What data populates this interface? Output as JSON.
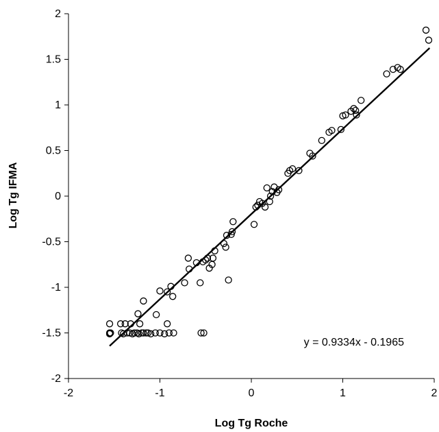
{
  "chart_data": {
    "type": "scatter",
    "title": "",
    "xlabel": "Log Tg Roche",
    "ylabel": "Log Tg IFMA",
    "xlim": [
      -2,
      2
    ],
    "ylim": [
      -2,
      2
    ],
    "xticks": [
      "-2",
      "-1",
      "0",
      "1",
      "2"
    ],
    "yticks": [
      "-2",
      "-1.5",
      "-1",
      "-0.5",
      "0",
      "0.5",
      "1",
      "1.5",
      "2"
    ],
    "grid": false,
    "legend": "none",
    "marker": "open-circle",
    "colors": {
      "points": "#000000",
      "line": "#000000",
      "axes": "#000000"
    },
    "trendline": {
      "slope": 0.9334,
      "intercept": -0.1965,
      "x_range": [
        -1.55,
        1.95
      ],
      "equation_label": "y = 0.9334x - 0.1965"
    },
    "points": [
      [
        -1.55,
        -1.4
      ],
      [
        -1.55,
        -1.5
      ],
      [
        -1.55,
        -1.51
      ],
      [
        -1.54,
        -1.5
      ],
      [
        -1.43,
        -1.4
      ],
      [
        -1.42,
        -1.5
      ],
      [
        -1.4,
        -1.51
      ],
      [
        -1.38,
        -1.4
      ],
      [
        -1.36,
        -1.5
      ],
      [
        -1.33,
        -1.5
      ],
      [
        -1.3,
        -1.51
      ],
      [
        -1.32,
        -1.4
      ],
      [
        -1.28,
        -1.5
      ],
      [
        -1.25,
        -1.5
      ],
      [
        -1.23,
        -1.51
      ],
      [
        -1.22,
        -1.4
      ],
      [
        -1.2,
        -1.5
      ],
      [
        -1.18,
        -1.5
      ],
      [
        -1.15,
        -1.5
      ],
      [
        -1.13,
        -1.5
      ],
      [
        -1.1,
        -1.51
      ],
      [
        -1.05,
        -1.5
      ],
      [
        -1.0,
        -1.5
      ],
      [
        -0.95,
        -1.51
      ],
      [
        -0.92,
        -1.4
      ],
      [
        -0.9,
        -1.5
      ],
      [
        -0.85,
        -1.5
      ],
      [
        -0.55,
        -1.5
      ],
      [
        -0.52,
        -1.5
      ],
      [
        -1.24,
        -1.29
      ],
      [
        -1.18,
        -1.15
      ],
      [
        -1.04,
        -1.3
      ],
      [
        -1.0,
        -1.04
      ],
      [
        -0.92,
        -1.05
      ],
      [
        -0.88,
        -0.99
      ],
      [
        -0.86,
        -1.1
      ],
      [
        -0.73,
        -0.95
      ],
      [
        -0.69,
        -0.68
      ],
      [
        -0.68,
        -0.8
      ],
      [
        -0.6,
        -0.73
      ],
      [
        -0.56,
        -0.95
      ],
      [
        -0.53,
        -0.72
      ],
      [
        -0.5,
        -0.7
      ],
      [
        -0.48,
        -0.68
      ],
      [
        -0.46,
        -0.79
      ],
      [
        -0.43,
        -0.75
      ],
      [
        -0.42,
        -0.68
      ],
      [
        -0.4,
        -0.6
      ],
      [
        -0.3,
        -0.52
      ],
      [
        -0.28,
        -0.56
      ],
      [
        -0.27,
        -0.43
      ],
      [
        -0.25,
        -0.92
      ],
      [
        -0.22,
        -0.42
      ],
      [
        -0.21,
        -0.39
      ],
      [
        -0.2,
        -0.28
      ],
      [
        0.03,
        -0.31
      ],
      [
        0.05,
        -0.12
      ],
      [
        0.07,
        -0.1
      ],
      [
        0.09,
        -0.06
      ],
      [
        0.12,
        -0.08
      ],
      [
        0.15,
        -0.12
      ],
      [
        0.17,
        0.09
      ],
      [
        0.2,
        -0.06
      ],
      [
        0.21,
        0.0
      ],
      [
        0.23,
        0.05
      ],
      [
        0.25,
        0.1
      ],
      [
        0.28,
        0.04
      ],
      [
        0.3,
        0.07
      ],
      [
        0.4,
        0.25
      ],
      [
        0.42,
        0.28
      ],
      [
        0.45,
        0.3
      ],
      [
        0.52,
        0.28
      ],
      [
        0.64,
        0.47
      ],
      [
        0.67,
        0.44
      ],
      [
        0.77,
        0.61
      ],
      [
        0.85,
        0.7
      ],
      [
        0.88,
        0.72
      ],
      [
        0.98,
        0.73
      ],
      [
        1.0,
        0.88
      ],
      [
        1.03,
        0.89
      ],
      [
        1.09,
        0.93
      ],
      [
        1.12,
        0.96
      ],
      [
        1.14,
        0.94
      ],
      [
        1.15,
        0.89
      ],
      [
        1.2,
        1.05
      ],
      [
        1.48,
        1.34
      ],
      [
        1.55,
        1.39
      ],
      [
        1.6,
        1.41
      ],
      [
        1.63,
        1.39
      ],
      [
        1.91,
        1.82
      ],
      [
        1.94,
        1.71
      ]
    ]
  }
}
